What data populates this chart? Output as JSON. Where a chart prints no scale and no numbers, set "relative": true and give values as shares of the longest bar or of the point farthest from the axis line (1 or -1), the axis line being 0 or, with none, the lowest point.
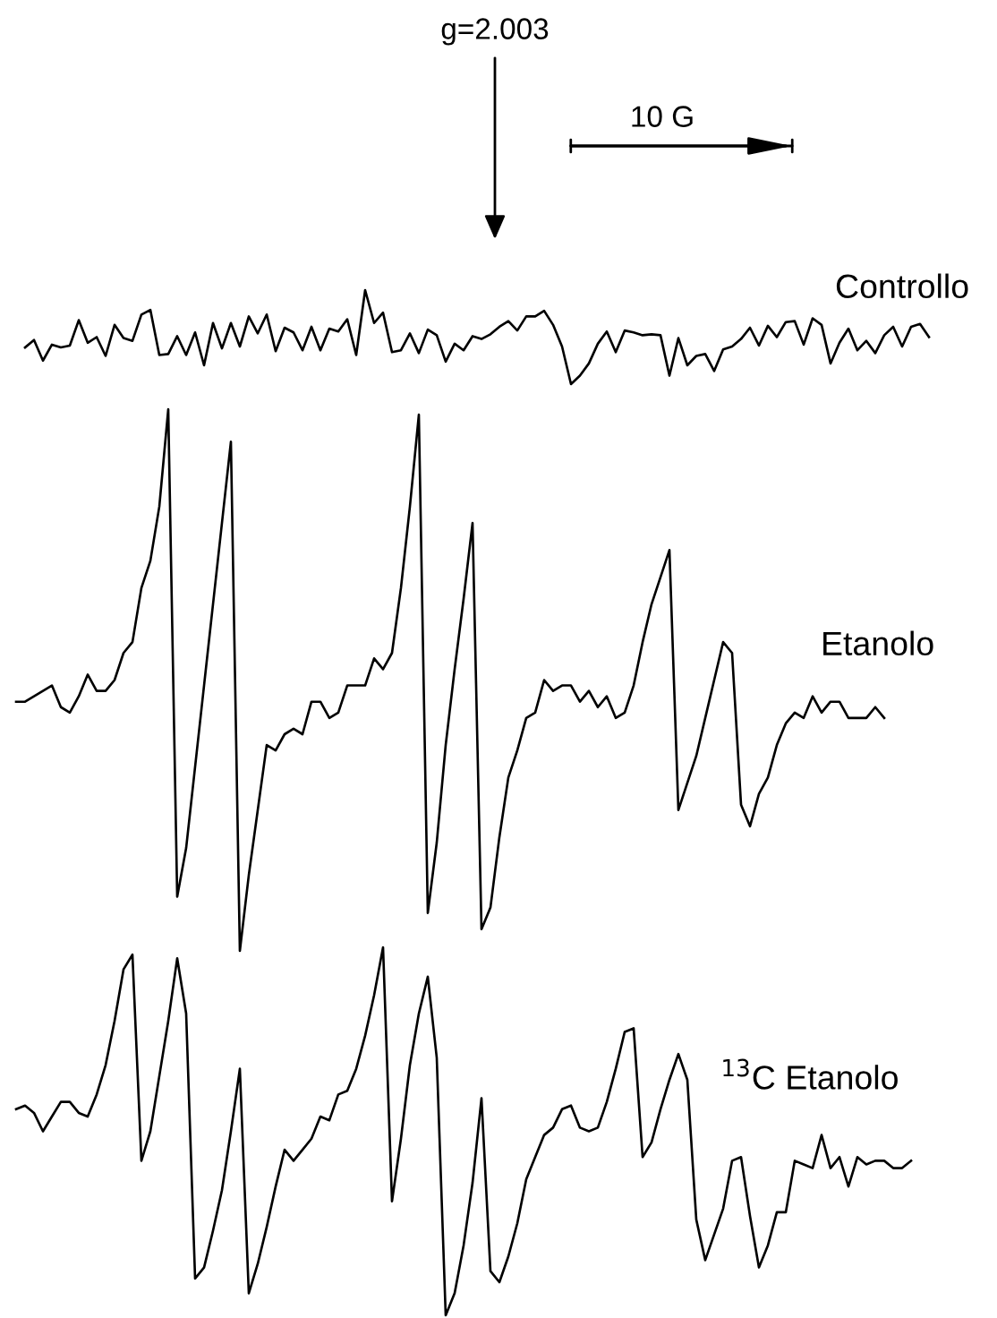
{
  "chart_data": [
    {
      "type": "line",
      "relative": true,
      "tick_labels": false,
      "annotations": [
        "g=2.003",
        "10 G"
      ],
      "categories": [
        null,
        null,
        null,
        null,
        null,
        null,
        null,
        null,
        null,
        null,
        null,
        null,
        null,
        null,
        null,
        null,
        null,
        null,
        null,
        null,
        null,
        null,
        null,
        null,
        null,
        null,
        null,
        null,
        null,
        null,
        null,
        null,
        null,
        null,
        null,
        null,
        null,
        null,
        null,
        null,
        null,
        null,
        null,
        null,
        null,
        null,
        null,
        null,
        null,
        null,
        null,
        null,
        null,
        null,
        null,
        null,
        null,
        null,
        null,
        null,
        null,
        null,
        null,
        null,
        null,
        null,
        null,
        null,
        null,
        null,
        null,
        null,
        null,
        null,
        null,
        null,
        null,
        null,
        null,
        null,
        null,
        null,
        null,
        null,
        null,
        null,
        null,
        null,
        null,
        null,
        null,
        null,
        null,
        null,
        null,
        null,
        null,
        null,
        null,
        null,
        null,
        null,
        null
      ],
      "series": [
        {
          "name": "Controllo",
          "color": "#000000",
          "values": [
            null,
            0.39,
            0.47,
            0.25,
            0.42,
            0.39,
            0.41,
            0.68,
            0.44,
            0.5,
            0.3,
            0.63,
            0.49,
            0.46,
            0.74,
            0.79,
            0.31,
            0.32,
            0.51,
            0.31,
            0.55,
            0.2,
            0.65,
            0.38,
            0.65,
            0.4,
            0.72,
            0.54,
            0.74,
            0.35,
            0.6,
            0.55,
            0.36,
            0.61,
            0.36,
            0.59,
            0.56,
            0.69,
            0.31,
            1.0,
            0.65,
            0.76,
            0.34,
            0.36,
            0.54,
            0.33,
            0.58,
            0.52,
            0.24,
            0.43,
            0.36,
            0.51,
            0.48,
            0.53,
            0.61,
            0.67,
            0.57,
            0.72,
            0.72,
            0.78,
            0.63,
            0.4,
            0.0,
            0.09,
            0.22,
            0.43,
            0.56,
            0.34,
            0.57,
            0.55,
            0.52,
            0.53,
            0.52,
            0.09,
            0.49,
            0.2,
            0.3,
            0.32,
            0.14,
            0.37,
            0.4,
            0.48,
            0.6,
            0.41,
            0.62,
            0.5,
            0.66,
            0.67,
            0.42,
            0.7,
            0.63,
            0.22,
            0.44,
            0.59,
            0.36,
            0.46,
            0.33,
            0.52,
            0.61,
            0.4,
            0.61,
            0.64,
            0.5
          ]
        }
      ]
    },
    {
      "type": "line",
      "relative": true,
      "tick_labels": false,
      "categories": [
        null,
        null,
        null,
        null,
        null,
        null,
        null,
        null,
        null,
        null,
        null,
        null,
        null,
        null,
        null,
        null,
        null,
        null,
        null,
        null,
        null,
        null,
        null,
        null,
        null,
        null,
        null,
        null,
        null,
        null,
        null,
        null,
        null,
        null,
        null,
        null,
        null,
        null,
        null,
        null,
        null,
        null,
        null,
        null,
        null,
        null,
        null,
        null,
        null,
        null,
        null,
        null,
        null,
        null,
        null,
        null,
        null,
        null,
        null,
        null,
        null,
        null,
        null,
        null,
        null,
        null,
        null,
        null,
        null,
        null,
        null,
        null,
        null,
        null,
        null,
        null,
        null,
        null,
        null,
        null,
        null,
        null,
        null,
        null,
        null,
        null,
        null,
        null,
        null,
        null,
        null,
        null,
        null,
        null,
        null,
        null,
        null,
        null,
        null,
        null,
        null,
        null,
        null
      ],
      "series": [
        {
          "name": "Etanolo",
          "color": "#000000",
          "values": [
            0.46,
            0.46,
            0.47,
            0.48,
            0.49,
            0.45,
            0.44,
            0.47,
            0.51,
            0.48,
            0.48,
            0.5,
            0.55,
            0.57,
            0.67,
            0.72,
            0.82,
            1.0,
            0.1,
            0.19,
            0.34,
            0.49,
            0.64,
            0.79,
            0.94,
            0.0,
            0.14,
            0.26,
            0.38,
            0.37,
            0.4,
            0.41,
            0.4,
            0.46,
            0.46,
            0.43,
            0.44,
            0.49,
            0.49,
            0.49,
            0.54,
            0.52,
            0.55,
            0.67,
            0.82,
            0.99,
            0.07,
            0.2,
            0.38,
            0.52,
            0.65,
            0.79,
            0.04,
            0.08,
            0.21,
            0.32,
            0.37,
            0.43,
            0.44,
            0.5,
            0.48,
            0.49,
            0.49,
            0.46,
            0.48,
            0.45,
            0.47,
            0.43,
            0.44,
            0.49,
            0.57,
            0.64,
            0.69,
            0.74,
            0.26,
            0.31,
            0.36,
            0.43,
            0.5,
            0.57,
            0.55,
            0.27,
            0.23,
            0.29,
            0.32,
            0.38,
            0.42,
            0.44,
            0.43,
            0.47,
            0.44,
            0.46,
            0.46,
            0.43,
            0.43,
            0.43,
            0.45,
            0.43,
            null,
            null,
            null,
            null,
            null
          ]
        }
      ]
    },
    {
      "type": "line",
      "relative": true,
      "tick_labels": false,
      "categories": [
        null,
        null,
        null,
        null,
        null,
        null,
        null,
        null,
        null,
        null,
        null,
        null,
        null,
        null,
        null,
        null,
        null,
        null,
        null,
        null,
        null,
        null,
        null,
        null,
        null,
        null,
        null,
        null,
        null,
        null,
        null,
        null,
        null,
        null,
        null,
        null,
        null,
        null,
        null,
        null,
        null,
        null,
        null,
        null,
        null,
        null,
        null,
        null,
        null,
        null,
        null,
        null,
        null,
        null,
        null,
        null,
        null,
        null,
        null,
        null,
        null,
        null,
        null,
        null,
        null,
        null,
        null,
        null,
        null,
        null,
        null,
        null,
        null,
        null,
        null,
        null,
        null,
        null,
        null,
        null,
        null,
        null,
        null,
        null,
        null,
        null,
        null,
        null,
        null,
        null,
        null,
        null,
        null,
        null,
        null,
        null,
        null,
        null,
        null,
        null,
        null,
        null,
        null
      ],
      "series": [
        {
          "name": "$^{13}$C Etanolo",
          "color": "#000000",
          "values": [
            0.56,
            0.57,
            0.55,
            0.5,
            0.54,
            0.58,
            0.58,
            0.55,
            0.54,
            0.6,
            0.68,
            0.8,
            0.94,
            0.98,
            0.42,
            0.5,
            0.65,
            0.8,
            0.97,
            0.82,
            0.1,
            0.13,
            0.23,
            0.34,
            0.5,
            0.67,
            0.06,
            0.14,
            0.24,
            0.35,
            0.45,
            0.42,
            0.45,
            0.48,
            0.54,
            0.53,
            0.6,
            0.61,
            0.67,
            0.76,
            0.87,
            1.0,
            0.31,
            0.48,
            0.68,
            0.82,
            0.92,
            0.7,
            0.0,
            0.06,
            0.19,
            0.36,
            0.59,
            0.12,
            0.09,
            0.16,
            0.25,
            0.37,
            0.43,
            0.49,
            0.51,
            0.56,
            0.57,
            0.51,
            0.5,
            0.51,
            0.58,
            0.67,
            0.77,
            0.78,
            0.43,
            0.47,
            0.56,
            0.64,
            0.71,
            0.64,
            0.26,
            0.15,
            0.22,
            0.29,
            0.42,
            0.43,
            0.27,
            0.13,
            0.19,
            0.28,
            0.28,
            0.42,
            0.41,
            0.4,
            0.49,
            0.4,
            0.43,
            0.35,
            0.43,
            0.41,
            0.42,
            0.42,
            0.4,
            0.4,
            0.42,
            null,
            null
          ]
        }
      ]
    }
  ]
}
